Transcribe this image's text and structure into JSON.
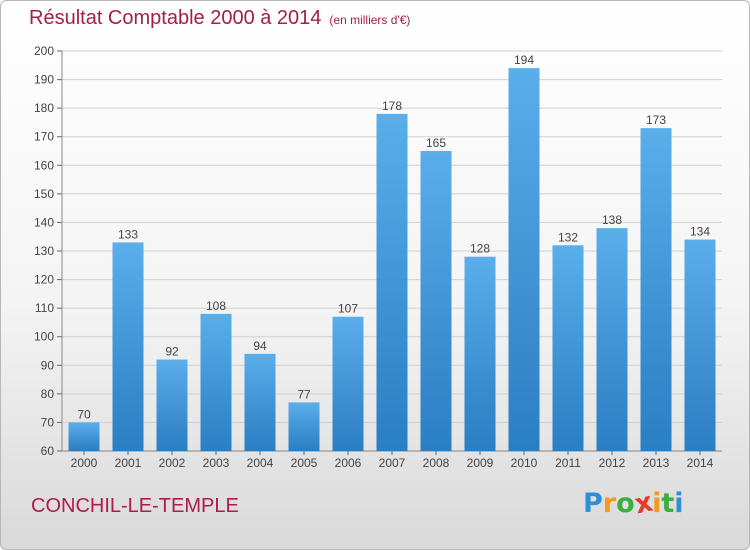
{
  "chart_data": {
    "type": "bar",
    "title": "Résultat Comptable 2000 à 2014",
    "units": "(en milliers d'€)",
    "categories": [
      "2000",
      "2001",
      "2002",
      "2003",
      "2004",
      "2005",
      "2006",
      "2007",
      "2008",
      "2009",
      "2010",
      "2011",
      "2012",
      "2013",
      "2014"
    ],
    "values": [
      70,
      133,
      92,
      108,
      94,
      77,
      107,
      178,
      165,
      128,
      194,
      132,
      138,
      173,
      134
    ],
    "ylim": [
      60,
      200
    ],
    "yticks": [
      60,
      70,
      80,
      90,
      100,
      110,
      120,
      130,
      140,
      150,
      160,
      170,
      180,
      190,
      200
    ],
    "grid": true,
    "bar_color": "#3d96d8",
    "xlabel": "",
    "ylabel": ""
  },
  "footer": {
    "commune": "CONCHIL-LE-TEMPLE",
    "logo_letters": [
      "P",
      "r",
      "o",
      "x",
      "i",
      "t",
      "i"
    ],
    "logo_colors": [
      "#2e8fd6",
      "#f39a1b",
      "#3aae3f",
      "#e53b2c",
      "#f39a1b",
      "#3aae3f",
      "#2e8fd6"
    ]
  }
}
